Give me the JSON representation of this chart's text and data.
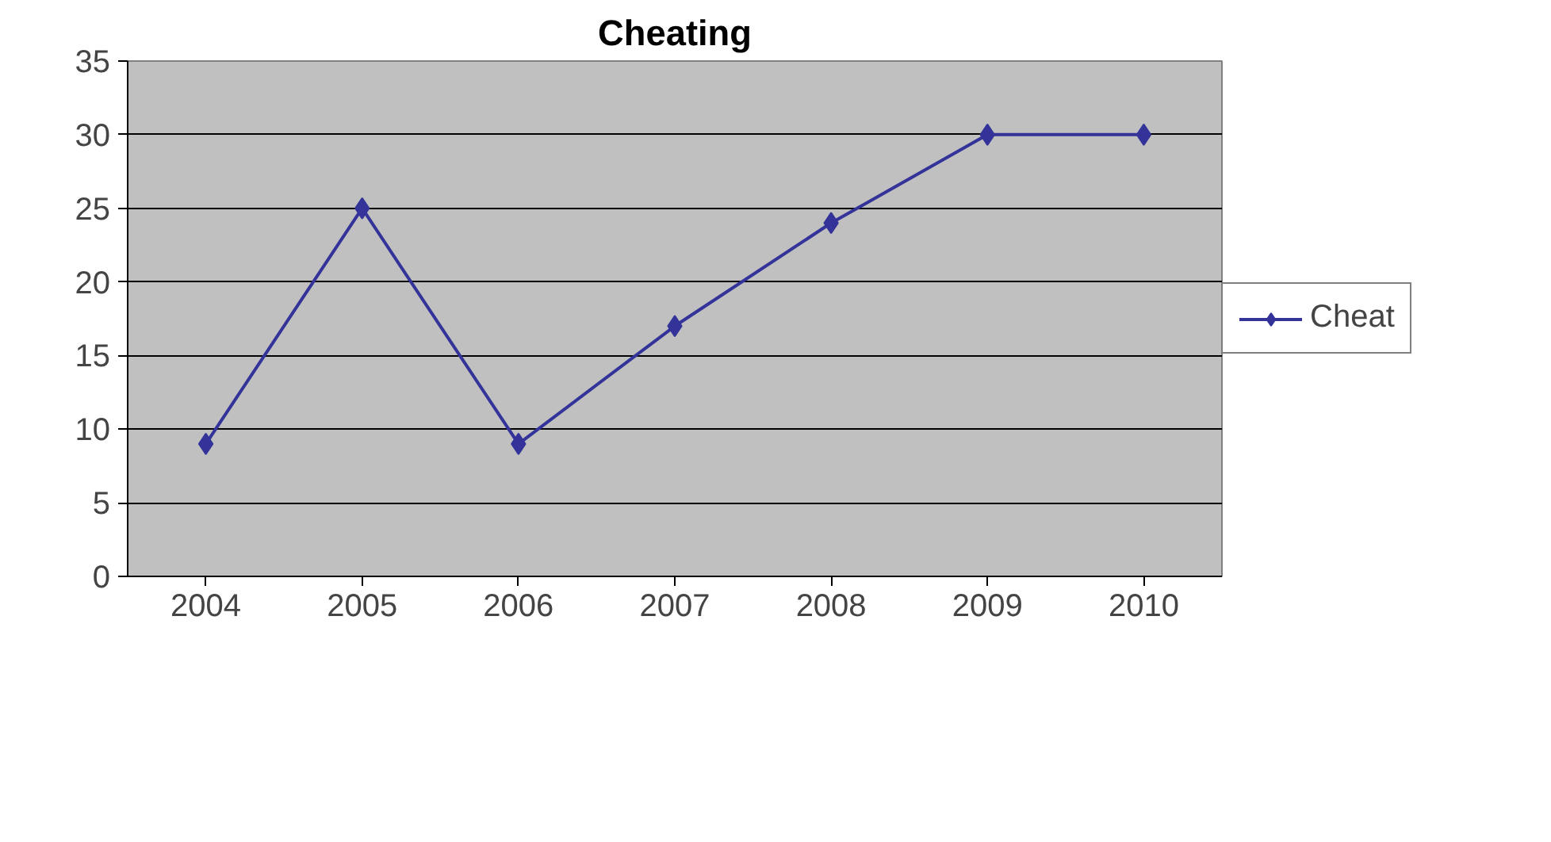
{
  "chart_data": {
    "type": "line",
    "title": "Cheating",
    "categories": [
      "2004",
      "2005",
      "2006",
      "2007",
      "2008",
      "2009",
      "2010"
    ],
    "series": [
      {
        "name": "Cheat",
        "color": "#333399",
        "values": [
          9,
          25,
          9,
          17,
          24,
          30,
          30
        ]
      }
    ],
    "ylim": [
      0,
      35
    ],
    "yticks": [
      0,
      5,
      10,
      15,
      20,
      25,
      30,
      35
    ],
    "grid": "y",
    "legend": "right",
    "marker": "diamond",
    "line_style": "solid"
  }
}
